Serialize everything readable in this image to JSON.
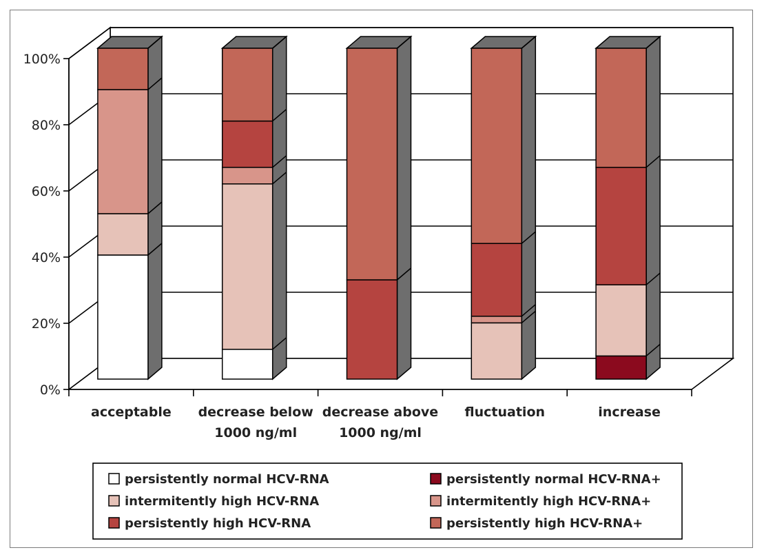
{
  "chart_data": {
    "type": "bar",
    "stacked": true,
    "normalized": true,
    "three_d": true,
    "title": "",
    "xlabel": "",
    "ylabel": "",
    "ylim": [
      0,
      100
    ],
    "y_ticks": [
      "0%",
      "20%",
      "40%",
      "60%",
      "80%",
      "100%"
    ],
    "y_tick_values": [
      0,
      20,
      40,
      60,
      80,
      100
    ],
    "grid": true,
    "legend_position": "bottom",
    "categories": [
      [
        "acceptable"
      ],
      [
        "decrease below",
        "1000 ng/ml"
      ],
      [
        "decrease above",
        "1000 ng/ml"
      ],
      [
        "fluctuation"
      ],
      [
        "increase"
      ]
    ],
    "series": [
      {
        "name": "persistently normal HCV-RNA",
        "color": "#ffffff",
        "values": [
          37.5,
          9,
          0,
          0,
          0
        ]
      },
      {
        "name": "persistently normal HCV-RNA+",
        "color": "#8b0a1e",
        "values": [
          0,
          0,
          0,
          0,
          7
        ]
      },
      {
        "name": "intermitently high HCV-RNA",
        "color": "#e6c2b8",
        "values": [
          12.5,
          50,
          0,
          17,
          21.5
        ]
      },
      {
        "name": "intermitently high HCV-RNA+",
        "color": "#d8958a",
        "values": [
          37.5,
          5,
          0,
          2,
          0
        ]
      },
      {
        "name": "persistently high HCV-RNA",
        "color": "#b54440",
        "values": [
          0,
          14,
          30,
          22,
          35.5
        ]
      },
      {
        "name": "persistently high HCV-RNA+",
        "color": "#c26758",
        "values": [
          12.5,
          22,
          70,
          59,
          36
        ]
      }
    ],
    "legend_order": [
      "persistently normal HCV-RNA",
      "persistently normal HCV-RNA+",
      "intermitently high HCV-RNA",
      "intermitently high HCV-RNA+",
      "persistently high HCV-RNA",
      "persistently high HCV-RNA+"
    ],
    "side_color": "#6e6e6e"
  }
}
